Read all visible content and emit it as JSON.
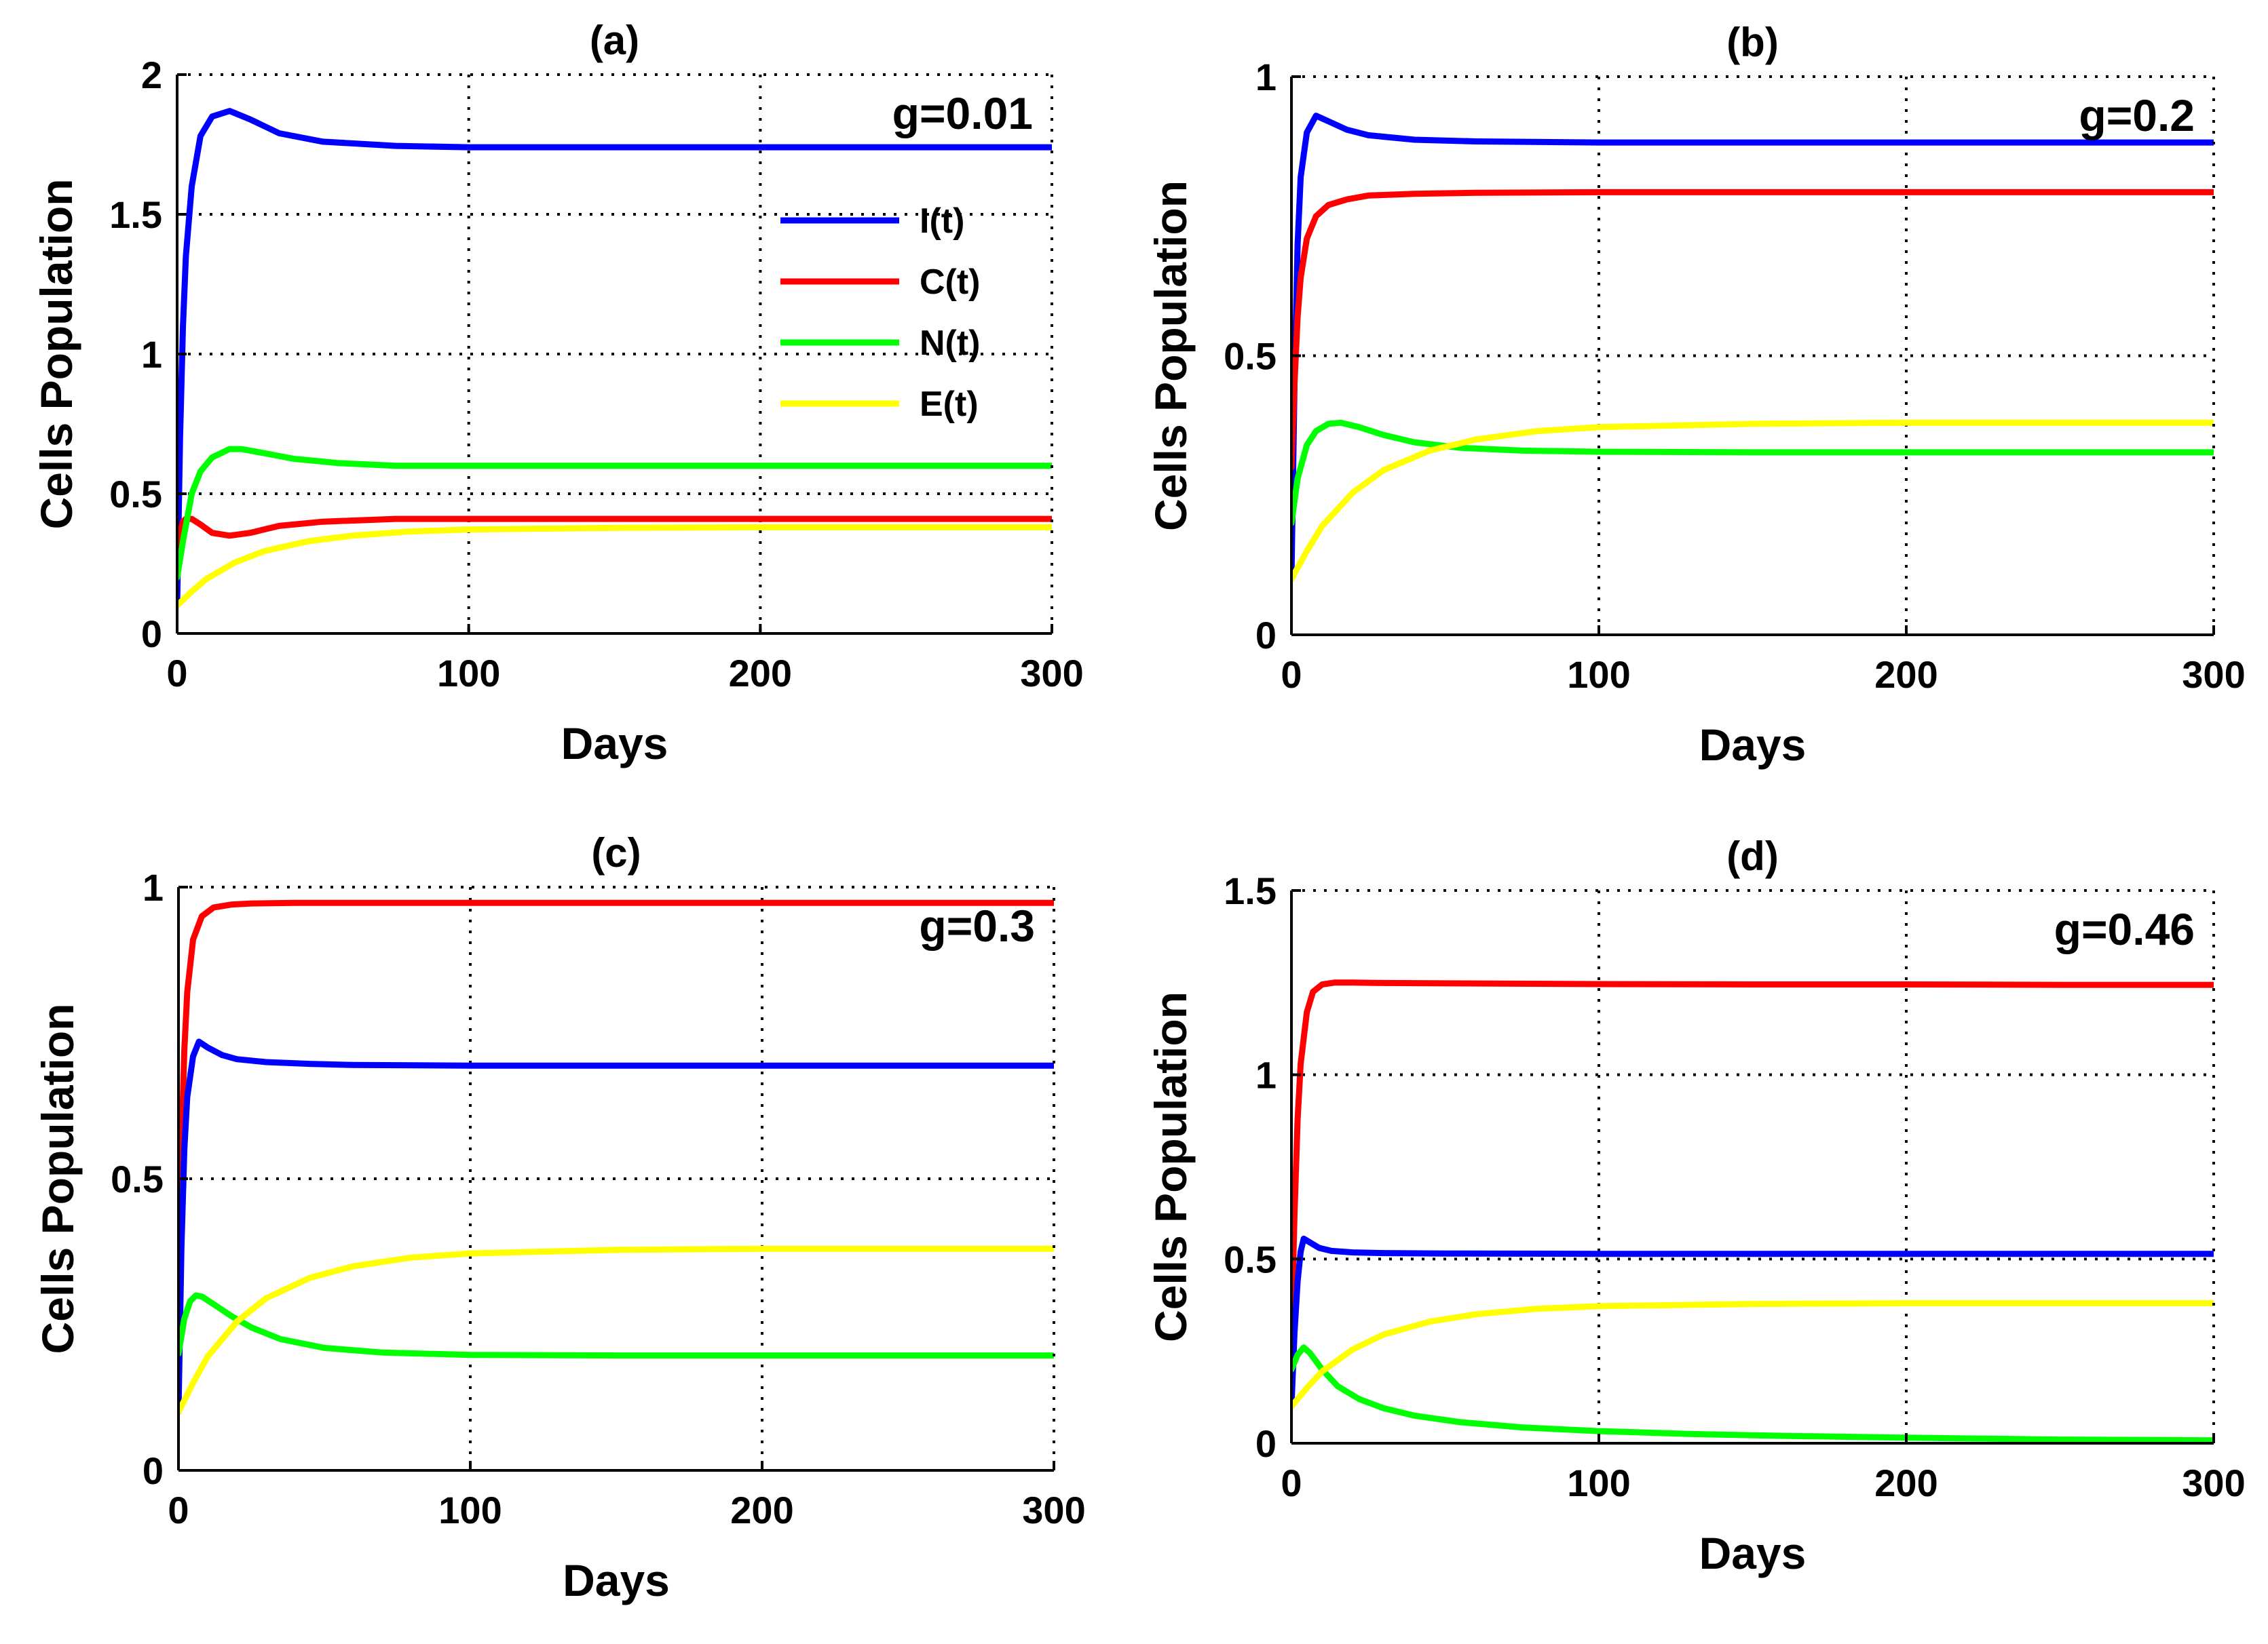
{
  "colors": {
    "I": "#0000ff",
    "C": "#ff0000",
    "N": "#00ff00",
    "E": "#ffff00"
  },
  "chart_data": [
    {
      "type": "line",
      "title": "(a)",
      "annotation": "g=0.01",
      "xlabel": "Days",
      "ylabel": "Cells Population",
      "xlim": [
        0,
        300
      ],
      "ylim": [
        0,
        2
      ],
      "xticks": [
        0,
        100,
        200,
        300
      ],
      "yticks": [
        0,
        0.5,
        1,
        1.5,
        2
      ],
      "ytick_labels": [
        "0",
        "0.5",
        "1",
        "1.5",
        "2"
      ],
      "grid": true,
      "legend": {
        "position": "right-upper",
        "entries": [
          "I(t)",
          "C(t)",
          "N(t)",
          "E(t)"
        ]
      },
      "series": [
        {
          "name": "I(t)",
          "color_key": "I",
          "x": [
            0,
            1,
            2,
            3,
            5,
            8,
            12,
            18,
            25,
            35,
            50,
            75,
            100,
            150,
            200,
            250,
            300
          ],
          "y": [
            0.1,
            0.7,
            1.1,
            1.35,
            1.6,
            1.78,
            1.85,
            1.87,
            1.84,
            1.79,
            1.76,
            1.745,
            1.74,
            1.74,
            1.74,
            1.74,
            1.74
          ]
        },
        {
          "name": "C(t)",
          "color_key": "C",
          "x": [
            0,
            1,
            2,
            3,
            5,
            8,
            12,
            18,
            25,
            35,
            50,
            75,
            100,
            150,
            200,
            250,
            300
          ],
          "y": [
            0.3,
            0.36,
            0.4,
            0.41,
            0.41,
            0.39,
            0.36,
            0.35,
            0.36,
            0.385,
            0.4,
            0.41,
            0.41,
            0.41,
            0.41,
            0.41,
            0.41
          ]
        },
        {
          "name": "N(t)",
          "color_key": "N",
          "x": [
            0,
            2,
            5,
            8,
            12,
            18,
            22,
            30,
            40,
            55,
            75,
            100,
            150,
            200,
            250,
            300
          ],
          "y": [
            0.2,
            0.33,
            0.5,
            0.58,
            0.63,
            0.66,
            0.66,
            0.645,
            0.625,
            0.61,
            0.6,
            0.6,
            0.6,
            0.6,
            0.6,
            0.6
          ]
        },
        {
          "name": "E(t)",
          "color_key": "E",
          "x": [
            0,
            5,
            10,
            20,
            30,
            45,
            60,
            80,
            100,
            150,
            200,
            250,
            300
          ],
          "y": [
            0.1,
            0.15,
            0.195,
            0.255,
            0.295,
            0.33,
            0.35,
            0.365,
            0.372,
            0.378,
            0.38,
            0.38,
            0.38
          ]
        }
      ]
    },
    {
      "type": "line",
      "title": "(b)",
      "annotation": "g=0.2",
      "xlabel": "Days",
      "ylabel": "Cells Population",
      "xlim": [
        0,
        300
      ],
      "ylim": [
        0,
        1
      ],
      "xticks": [
        0,
        100,
        200,
        300
      ],
      "yticks": [
        0,
        0.5,
        1
      ],
      "ytick_labels": [
        "0",
        "0.5",
        "1"
      ],
      "grid": true,
      "series": [
        {
          "name": "I(t)",
          "color_key": "I",
          "x": [
            0,
            1,
            2,
            3,
            5,
            8,
            12,
            18,
            25,
            40,
            60,
            100,
            150,
            200,
            250,
            300
          ],
          "y": [
            0.1,
            0.45,
            0.7,
            0.82,
            0.9,
            0.93,
            0.92,
            0.905,
            0.895,
            0.887,
            0.884,
            0.882,
            0.882,
            0.882,
            0.882,
            0.882
          ]
        },
        {
          "name": "C(t)",
          "color_key": "C",
          "x": [
            0,
            1,
            2,
            3,
            5,
            8,
            12,
            18,
            25,
            40,
            60,
            100,
            150,
            200,
            250,
            300
          ],
          "y": [
            0.3,
            0.45,
            0.57,
            0.64,
            0.71,
            0.75,
            0.77,
            0.78,
            0.787,
            0.79,
            0.792,
            0.793,
            0.793,
            0.793,
            0.793,
            0.793
          ]
        },
        {
          "name": "N(t)",
          "color_key": "N",
          "x": [
            0,
            2,
            5,
            8,
            12,
            16,
            22,
            30,
            40,
            55,
            75,
            100,
            150,
            200,
            250,
            300
          ],
          "y": [
            0.2,
            0.28,
            0.34,
            0.365,
            0.378,
            0.38,
            0.372,
            0.358,
            0.345,
            0.335,
            0.33,
            0.328,
            0.327,
            0.327,
            0.327,
            0.327
          ]
        },
        {
          "name": "E(t)",
          "color_key": "E",
          "x": [
            0,
            5,
            10,
            20,
            30,
            45,
            60,
            80,
            100,
            150,
            200,
            250,
            300
          ],
          "y": [
            0.1,
            0.15,
            0.195,
            0.255,
            0.295,
            0.33,
            0.35,
            0.365,
            0.372,
            0.378,
            0.38,
            0.38,
            0.38
          ]
        }
      ]
    },
    {
      "type": "line",
      "title": "(c)",
      "annotation": "g=0.3",
      "xlabel": "Days",
      "ylabel": "Cells Population",
      "xlim": [
        0,
        300
      ],
      "ylim": [
        0,
        1
      ],
      "xticks": [
        0,
        100,
        200,
        300
      ],
      "yticks": [
        0,
        0.5,
        1
      ],
      "ytick_labels": [
        "0",
        "0.5",
        "1"
      ],
      "grid": true,
      "series": [
        {
          "name": "C(t)",
          "color_key": "C",
          "x": [
            0,
            1,
            2,
            3,
            5,
            8,
            12,
            18,
            25,
            40,
            60,
            100,
            150,
            200,
            250,
            300
          ],
          "y": [
            0.3,
            0.55,
            0.72,
            0.82,
            0.91,
            0.95,
            0.965,
            0.97,
            0.972,
            0.973,
            0.973,
            0.973,
            0.973,
            0.973,
            0.973,
            0.973
          ]
        },
        {
          "name": "I(t)",
          "color_key": "I",
          "x": [
            0,
            1,
            2,
            3,
            5,
            7,
            10,
            15,
            20,
            30,
            45,
            60,
            100,
            150,
            200,
            250,
            300
          ],
          "y": [
            0.1,
            0.38,
            0.55,
            0.64,
            0.71,
            0.735,
            0.725,
            0.712,
            0.705,
            0.7,
            0.697,
            0.695,
            0.694,
            0.694,
            0.694,
            0.694,
            0.694
          ]
        },
        {
          "name": "N(t)",
          "color_key": "N",
          "x": [
            0,
            2,
            4,
            6,
            8,
            12,
            18,
            25,
            35,
            50,
            70,
            100,
            150,
            200,
            250,
            300
          ],
          "y": [
            0.2,
            0.26,
            0.29,
            0.3,
            0.298,
            0.285,
            0.265,
            0.245,
            0.225,
            0.21,
            0.202,
            0.198,
            0.197,
            0.197,
            0.197,
            0.197
          ]
        },
        {
          "name": "E(t)",
          "color_key": "E",
          "x": [
            0,
            5,
            10,
            20,
            30,
            45,
            60,
            80,
            100,
            150,
            200,
            250,
            300
          ],
          "y": [
            0.1,
            0.15,
            0.195,
            0.255,
            0.295,
            0.33,
            0.35,
            0.365,
            0.372,
            0.378,
            0.38,
            0.38,
            0.38
          ]
        }
      ]
    },
    {
      "type": "line",
      "title": "(d)",
      "annotation": "g=0.46",
      "xlabel": "Days",
      "ylabel": "Cells Population",
      "xlim": [
        0,
        300
      ],
      "ylim": [
        0,
        1.5
      ],
      "xticks": [
        0,
        100,
        200,
        300
      ],
      "yticks": [
        0,
        0.5,
        1,
        1.5
      ],
      "ytick_labels": [
        "0",
        "0.5",
        "1",
        "1.5"
      ],
      "grid": true,
      "series": [
        {
          "name": "C(t)",
          "color_key": "C",
          "x": [
            0,
            1,
            2,
            3,
            5,
            7,
            10,
            14,
            20,
            30,
            50,
            100,
            150,
            200,
            250,
            300
          ],
          "y": [
            0.3,
            0.62,
            0.88,
            1.03,
            1.17,
            1.225,
            1.245,
            1.25,
            1.25,
            1.249,
            1.248,
            1.246,
            1.245,
            1.245,
            1.244,
            1.244
          ]
        },
        {
          "name": "I(t)",
          "color_key": "I",
          "x": [
            0,
            1,
            2,
            3,
            4,
            6,
            9,
            13,
            20,
            30,
            50,
            100,
            150,
            200,
            250,
            300
          ],
          "y": [
            0.1,
            0.3,
            0.44,
            0.52,
            0.555,
            0.545,
            0.53,
            0.522,
            0.518,
            0.516,
            0.515,
            0.514,
            0.514,
            0.514,
            0.514,
            0.514
          ]
        },
        {
          "name": "N(t)",
          "color_key": "N",
          "x": [
            0,
            2,
            4,
            6,
            10,
            15,
            22,
            30,
            40,
            55,
            75,
            100,
            130,
            160,
            200,
            250,
            300
          ],
          "y": [
            0.2,
            0.24,
            0.26,
            0.245,
            0.2,
            0.155,
            0.12,
            0.095,
            0.075,
            0.057,
            0.043,
            0.033,
            0.025,
            0.02,
            0.015,
            0.01,
            0.008
          ]
        },
        {
          "name": "E(t)",
          "color_key": "E",
          "x": [
            0,
            5,
            10,
            20,
            30,
            45,
            60,
            80,
            100,
            150,
            200,
            250,
            300
          ],
          "y": [
            0.1,
            0.15,
            0.195,
            0.255,
            0.295,
            0.33,
            0.35,
            0.365,
            0.372,
            0.378,
            0.38,
            0.38,
            0.38
          ]
        }
      ]
    }
  ]
}
